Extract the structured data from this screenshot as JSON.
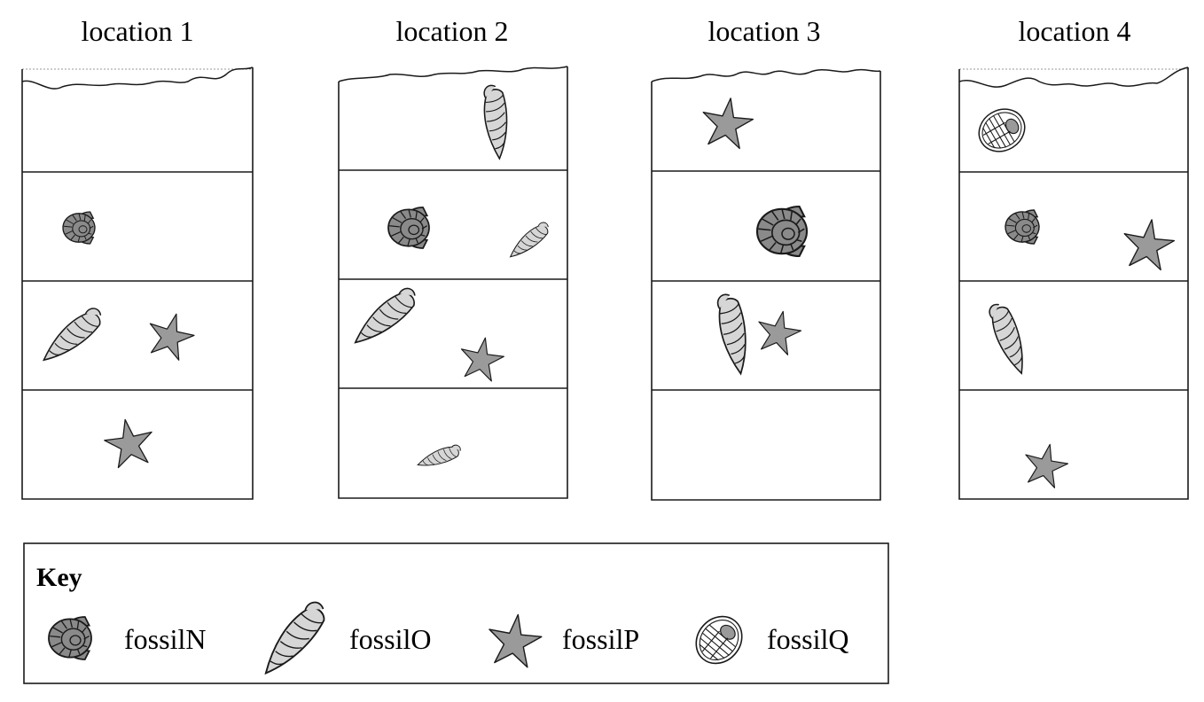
{
  "locations": [
    {
      "title": "location 1",
      "layers": [
        [],
        [
          "fossilN"
        ],
        [
          "fossilO",
          "fossilP"
        ],
        [
          "fossilP"
        ]
      ]
    },
    {
      "title": "location 2",
      "layers": [
        [
          "fossilO"
        ],
        [
          "fossilN",
          "fossilO"
        ],
        [
          "fossilO",
          "fossilP"
        ],
        [
          "fossilO"
        ]
      ]
    },
    {
      "title": "location 3",
      "layers": [
        [
          "fossilP"
        ],
        [
          "fossilN"
        ],
        [
          "fossilO",
          "fossilP"
        ],
        []
      ]
    },
    {
      "title": "location 4",
      "layers": [
        [
          "fossilQ"
        ],
        [
          "fossilN",
          "fossilP"
        ],
        [
          "fossilO"
        ],
        [
          "fossilP"
        ]
      ]
    }
  ],
  "key": {
    "title": "Key",
    "items": [
      {
        "id": "fossilN",
        "label": "fossilN",
        "icon": "ammonite-shell-icon"
      },
      {
        "id": "fossilO",
        "label": "fossilO",
        "icon": "spiral-cone-shell-icon"
      },
      {
        "id": "fossilP",
        "label": "fossilP",
        "icon": "starfish-icon"
      },
      {
        "id": "fossilQ",
        "label": "fossilQ",
        "icon": "trilobite-icon"
      }
    ]
  },
  "colors": {
    "outline": "#1a1a1a",
    "fossilN_fill": "#8a8a8a",
    "fossilO_fill": "#d6d6d6",
    "fossilP_fill": "#9a9a9a",
    "fossilQ_fill": "#ffffff"
  }
}
